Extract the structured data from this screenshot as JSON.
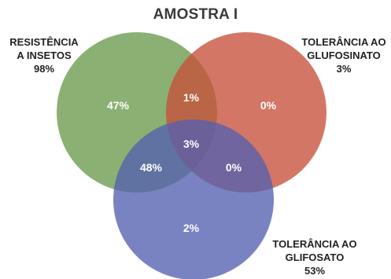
{
  "title": "AMOSTRA I",
  "sets": {
    "green": {
      "label_line1": "RESISTÊNCIA",
      "label_line2": "A INSETOS",
      "percent": "98%",
      "color": "#6a9a4c"
    },
    "red": {
      "label_line1": "TOLERÂNCIA AO",
      "label_line2": "GLUFOSINATO",
      "percent": "3%",
      "color": "#c8503a"
    },
    "blue": {
      "label_line1": "TOLERÂNCIA AO",
      "label_line2": "GLIFOSATO",
      "percent": "53%",
      "color": "#5460b0"
    }
  },
  "regions": {
    "green_only": "47%",
    "red_only": "0%",
    "blue_only": "2%",
    "green_red": "1%",
    "green_blue": "48%",
    "red_blue": "0%",
    "all_three": "3%"
  }
}
